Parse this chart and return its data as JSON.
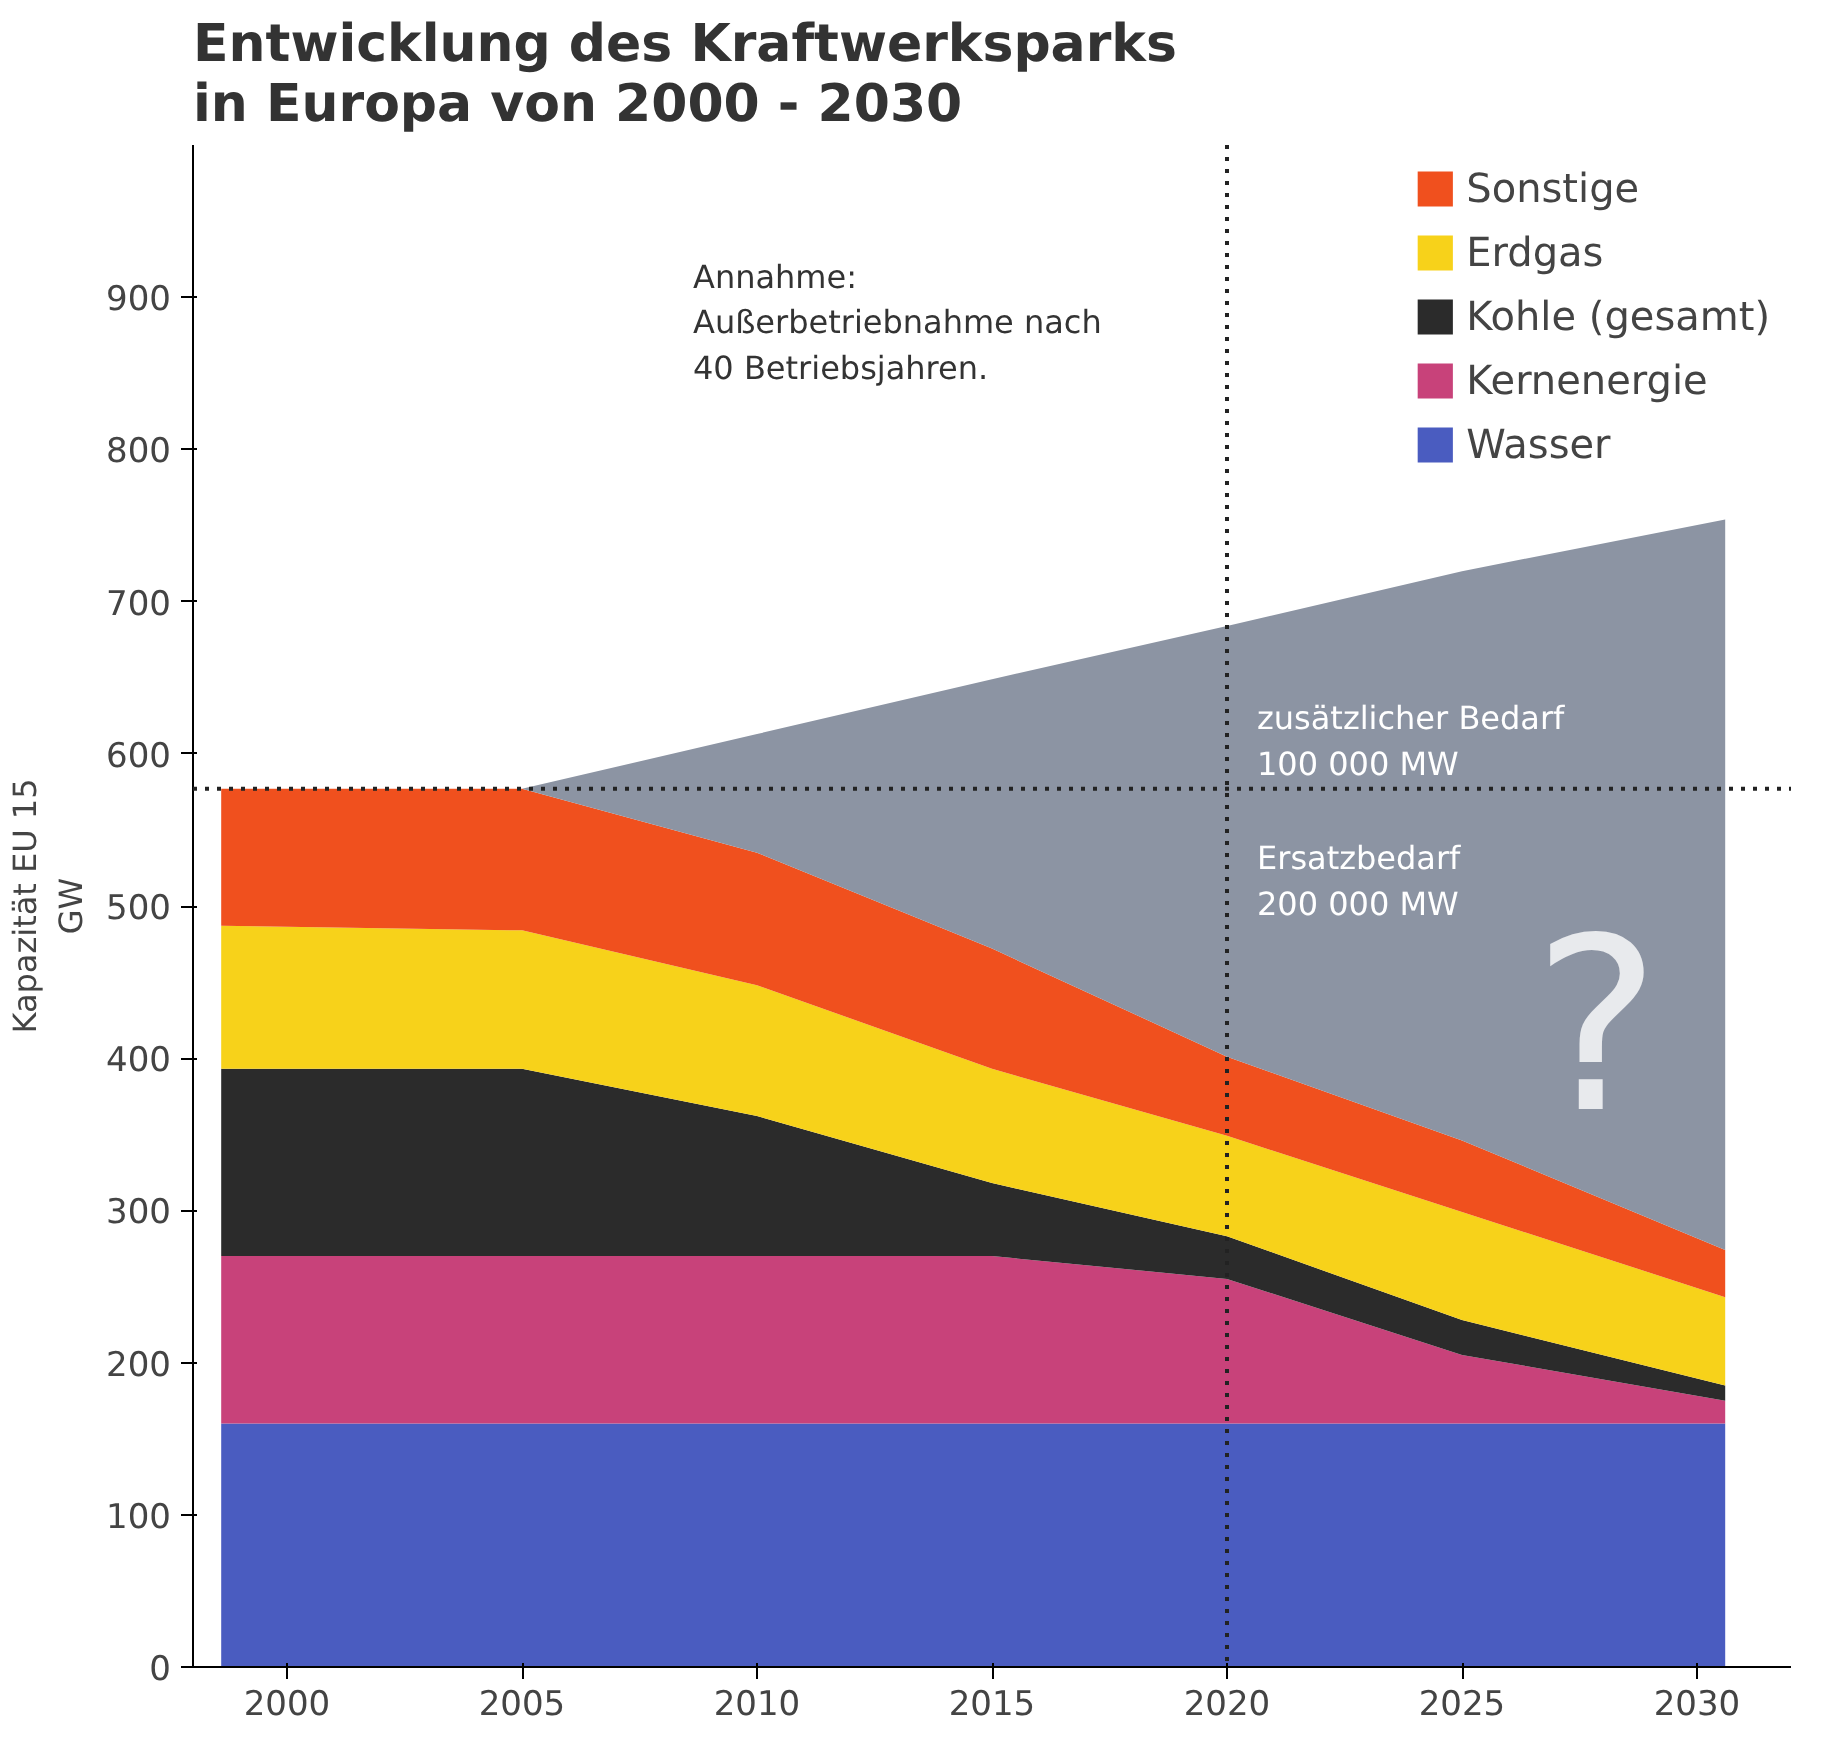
{
  "chart_data": {
    "type": "area",
    "stacked": true,
    "title": "Entwicklung des Kraftwerksparks\nin Europa von 2000 - 2030",
    "ylabel": "Kapazität EU 15\nGW",
    "x": [
      1998.6,
      2005,
      2010,
      2015,
      2020,
      2025,
      2030.6
    ],
    "series": [
      {
        "name": "Wasser",
        "color": "#4a5cc0",
        "values": [
          160,
          160,
          160,
          160,
          160,
          160,
          160
        ]
      },
      {
        "name": "Kernenergie",
        "color": "#c8427a",
        "values": [
          110,
          110,
          110,
          110,
          95,
          45,
          15
        ]
      },
      {
        "name": "Kohle (gesamt)",
        "color": "#2b2b2b",
        "values": [
          123,
          123,
          92,
          48,
          28,
          23,
          10
        ]
      },
      {
        "name": "Erdgas",
        "color": "#f7d21a",
        "values": [
          94,
          91,
          86,
          75,
          66,
          71,
          58
        ]
      },
      {
        "name": "Sonstige",
        "color": "#f0501e",
        "values": [
          90,
          93,
          87,
          79,
          52,
          47,
          31
        ]
      },
      {
        "color": "#8c94a3",
        "values": [
          0,
          0,
          78,
          177,
          283,
          374,
          480
        ]
      }
    ],
    "xlim": [
      1998,
      2032
    ],
    "ylim": [
      0,
      1000
    ],
    "xticks": [
      2000,
      2005,
      2010,
      2015,
      2020,
      2025,
      2030
    ],
    "yticks": [
      0,
      100,
      200,
      300,
      400,
      500,
      600,
      700,
      800,
      900
    ],
    "ref_lines": [
      {
        "axis": "y",
        "value": 577,
        "line_style": "dotted",
        "color": "#222222"
      },
      {
        "axis": "x",
        "value": 2020,
        "line_style": "dotted",
        "color": "#222222"
      }
    ],
    "annotations": [
      "Annahme:\nAußerbetriebnahme nach\n40 Betriebsjahren.",
      "zusätzlicher Bedarf\n100 000 MW",
      "Ersatzbedarf\n200 000 MW",
      "?"
    ],
    "grid": false,
    "legend": "top right"
  }
}
